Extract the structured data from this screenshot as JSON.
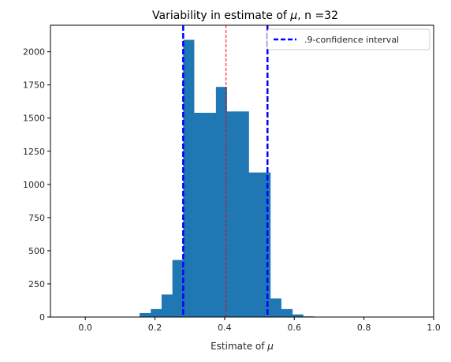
{
  "chart_data": {
    "type": "bar",
    "title_prefix": "Variability in estimate of ",
    "title_symbol": "μ",
    "title_suffix": ", n =32",
    "xlabel_prefix": "Estimate of ",
    "xlabel_symbol": "μ",
    "ylabel": "",
    "xlim": [
      -0.1,
      1.0
    ],
    "ylim": [
      0,
      2200
    ],
    "xticks": [
      0.0,
      0.2,
      0.4,
      0.6,
      0.8,
      1.0
    ],
    "xtick_labels": [
      "0.0",
      "0.2",
      "0.4",
      "0.6",
      "0.8",
      "1.0"
    ],
    "yticks": [
      0,
      250,
      500,
      750,
      1000,
      1250,
      1500,
      1750,
      2000
    ],
    "ytick_labels": [
      "0",
      "250",
      "500",
      "750",
      "1000",
      "1250",
      "1500",
      "1750",
      "2000"
    ],
    "bins": [
      {
        "x0": 0.125,
        "x1": 0.156,
        "count": 3
      },
      {
        "x0": 0.156,
        "x1": 0.188,
        "count": 30
      },
      {
        "x0": 0.188,
        "x1": 0.219,
        "count": 60
      },
      {
        "x0": 0.219,
        "x1": 0.25,
        "count": 170
      },
      {
        "x0": 0.25,
        "x1": 0.281,
        "count": 430
      },
      {
        "x0": 0.281,
        "x1": 0.312,
        "count": 2090
      },
      {
        "x0": 0.312,
        "x1": 0.344,
        "count": 1540
      },
      {
        "x0": 0.344,
        "x1": 0.375,
        "count": 1540
      },
      {
        "x0": 0.375,
        "x1": 0.406,
        "count": 1735
      },
      {
        "x0": 0.406,
        "x1": 0.438,
        "count": 1550
      },
      {
        "x0": 0.438,
        "x1": 0.469,
        "count": 1550
      },
      {
        "x0": 0.469,
        "x1": 0.5,
        "count": 1090
      },
      {
        "x0": 0.5,
        "x1": 0.531,
        "count": 1090
      },
      {
        "x0": 0.531,
        "x1": 0.562,
        "count": 140
      },
      {
        "x0": 0.562,
        "x1": 0.594,
        "count": 60
      },
      {
        "x0": 0.594,
        "x1": 0.625,
        "count": 20
      },
      {
        "x0": 0.625,
        "x1": 0.656,
        "count": 5
      },
      {
        "x0": 0.656,
        "x1": 0.688,
        "count": 2
      }
    ],
    "bar_color": "#1f77b4",
    "mean_line": {
      "x": 0.404,
      "color": "#ff0000"
    },
    "confidence_interval": {
      "label": ".9-confidence interval",
      "lower": 0.281,
      "upper": 0.523,
      "color": "#0000ff"
    },
    "legend_placement": "top-right",
    "grid": false
  }
}
